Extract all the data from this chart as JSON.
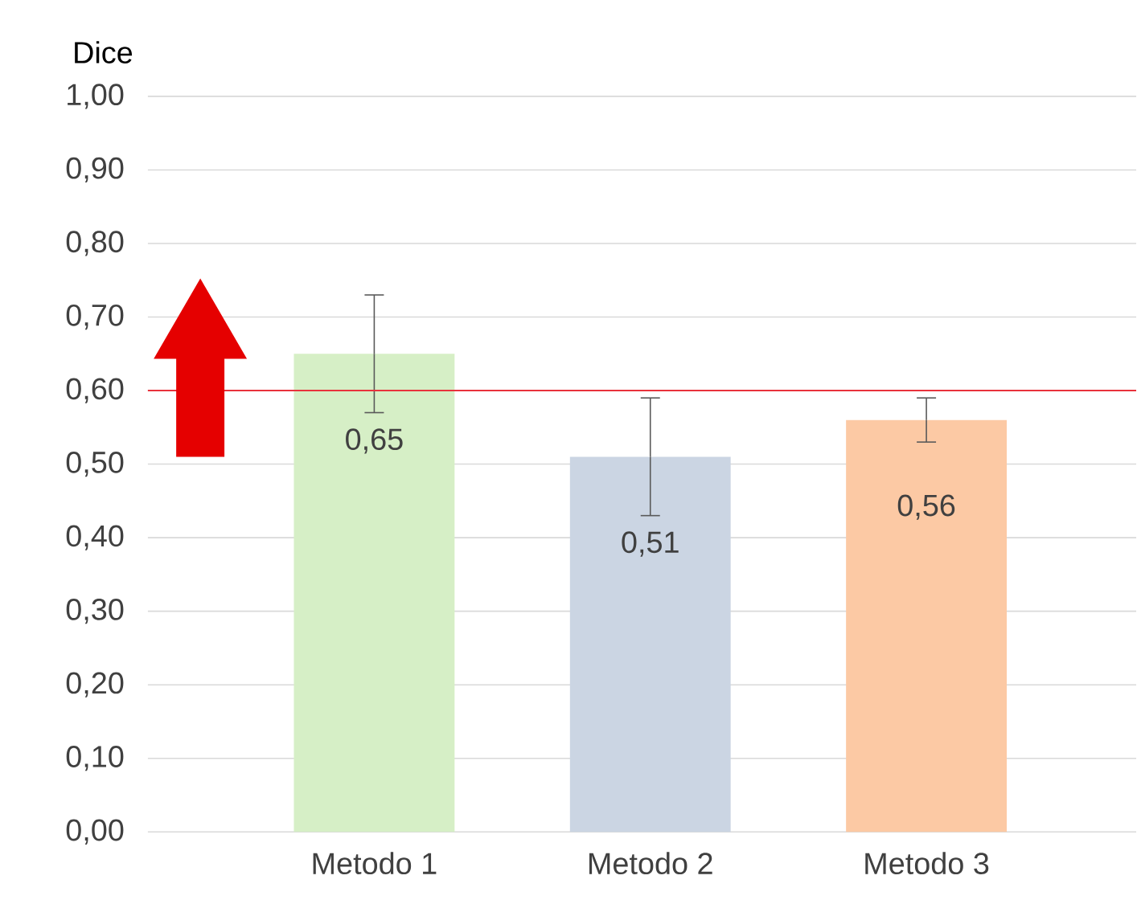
{
  "chart_data": {
    "type": "bar",
    "ylabel": "Dice",
    "categories": [
      "Metodo 1",
      "Metodo 2",
      "Metodo 3"
    ],
    "values": [
      0.65,
      0.51,
      0.56
    ],
    "colors": [
      "#d6efc6",
      "#cbd5e3",
      "#fcc9a4"
    ],
    "errors": [
      0.08,
      0.08,
      0.03
    ],
    "value_labels": [
      "0,65",
      "0,51",
      "0,56"
    ],
    "ylim": [
      0,
      1
    ],
    "yticks": [
      {
        "value": 0,
        "label": "0,00"
      },
      {
        "value": 0.1,
        "label": "0,10"
      },
      {
        "value": 0.2,
        "label": "0,20"
      },
      {
        "value": 0.3,
        "label": "0,30"
      },
      {
        "value": 0.4,
        "label": "0,40"
      },
      {
        "value": 0.5,
        "label": "0,50"
      },
      {
        "value": 0.6,
        "label": "0,60"
      },
      {
        "value": 0.7,
        "label": "0,70"
      },
      {
        "value": 0.8,
        "label": "0,80"
      },
      {
        "value": 0.9,
        "label": "0,90"
      },
      {
        "value": 1,
        "label": "1,00"
      }
    ],
    "ref_lines": [
      {
        "axis": "y",
        "value": 0.6,
        "color": "#e8323c"
      }
    ],
    "grid": "y"
  }
}
